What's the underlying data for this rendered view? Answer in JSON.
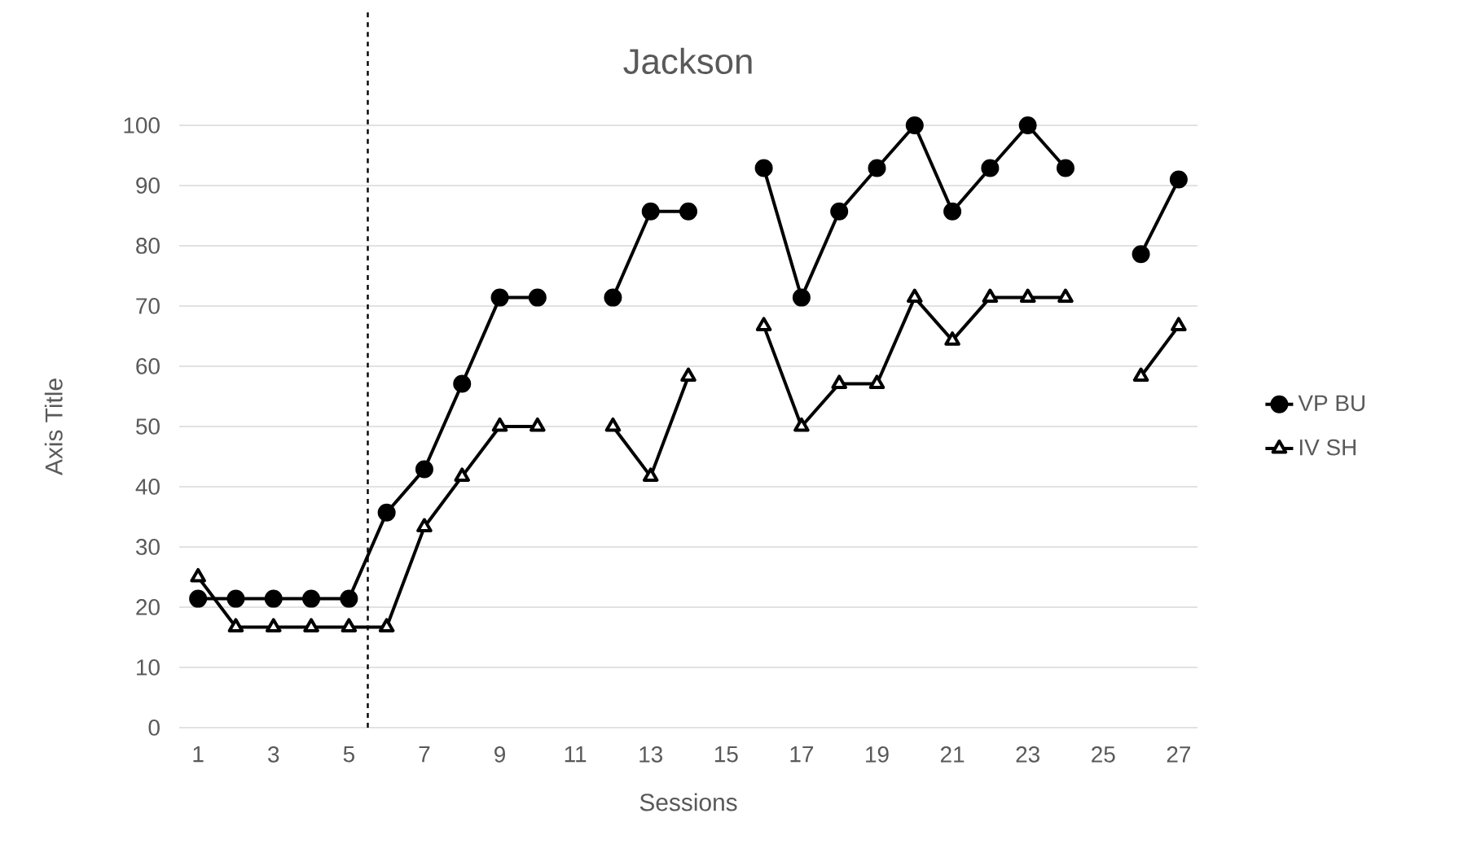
{
  "chart_data": {
    "type": "line",
    "title": "Jackson",
    "xlabel": "Sessions",
    "ylabel": "Axis Title",
    "x": [
      1,
      2,
      3,
      4,
      5,
      6,
      7,
      8,
      9,
      10,
      11,
      12,
      13,
      14,
      15,
      16,
      17,
      18,
      19,
      20,
      21,
      22,
      23,
      24,
      25,
      26,
      27
    ],
    "xlim": [
      0.5,
      27.5
    ],
    "xticks": [
      1,
      3,
      5,
      7,
      9,
      11,
      13,
      15,
      17,
      19,
      21,
      23,
      25,
      27
    ],
    "ylim": [
      0,
      100
    ],
    "yticks": [
      0,
      10,
      20,
      30,
      40,
      50,
      60,
      70,
      80,
      90,
      100
    ],
    "grid": "y",
    "legend": "right",
    "series": [
      {
        "name": "VP BU",
        "color": "#000000",
        "marker": "circle",
        "values": [
          21.4,
          21.4,
          21.4,
          21.4,
          21.4,
          35.7,
          42.9,
          57.1,
          71.4,
          71.4,
          null,
          71.4,
          85.7,
          85.7,
          null,
          92.9,
          71.4,
          85.7,
          92.9,
          100,
          85.7,
          92.9,
          100,
          92.9,
          null,
          78.6,
          91
        ]
      },
      {
        "name": "IV SH",
        "color": "#000000",
        "marker": "triangle",
        "values": [
          25,
          16.7,
          16.7,
          16.7,
          16.7,
          16.7,
          33.3,
          41.7,
          50,
          50,
          null,
          50,
          41.7,
          58.3,
          null,
          66.7,
          50,
          57.1,
          57.1,
          71.4,
          64.3,
          71.4,
          71.4,
          71.4,
          null,
          58.3,
          66.7
        ]
      }
    ],
    "ref_lines": [
      {
        "axis": "x",
        "value": 5.5,
        "color": "#000000",
        "line_style": "dashed"
      }
    ]
  }
}
